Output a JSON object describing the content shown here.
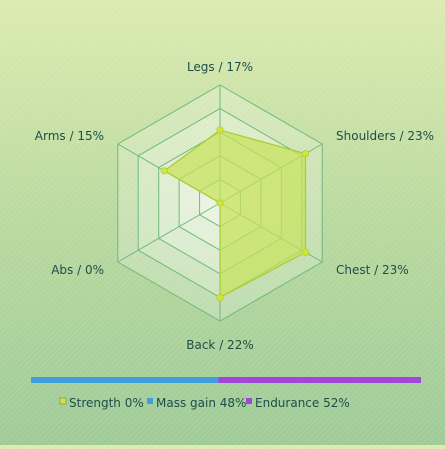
{
  "chart_data": {
    "type": "radar",
    "axes": [
      {
        "label": "Legs / 17%",
        "value": 17
      },
      {
        "label": "Shoulders / 23%",
        "value": 23
      },
      {
        "label": "Chest / 23%",
        "value": 23
      },
      {
        "label": "Back / 22%",
        "value": 22
      },
      {
        "label": "Abs / 0%",
        "value": 0
      },
      {
        "label": "Arms / 15%",
        "value": 15
      }
    ],
    "rmax": 27.5,
    "grid": true,
    "legend_position": "bottom",
    "legend": [
      {
        "label": "Strength 0%",
        "value": 0,
        "color": "#d6e04a"
      },
      {
        "label": "Mass gain 48%",
        "value": 48,
        "color": "#3e9fdc"
      },
      {
        "label": "Endurance 52%",
        "value": 52,
        "color": "#a046d8"
      }
    ],
    "colors": {
      "series_fill": "#c6e25a",
      "series_stroke": "#a8cc2c",
      "point": "#cfe63a",
      "grid": "#6fba7a",
      "label": "#1f4d4a"
    }
  }
}
